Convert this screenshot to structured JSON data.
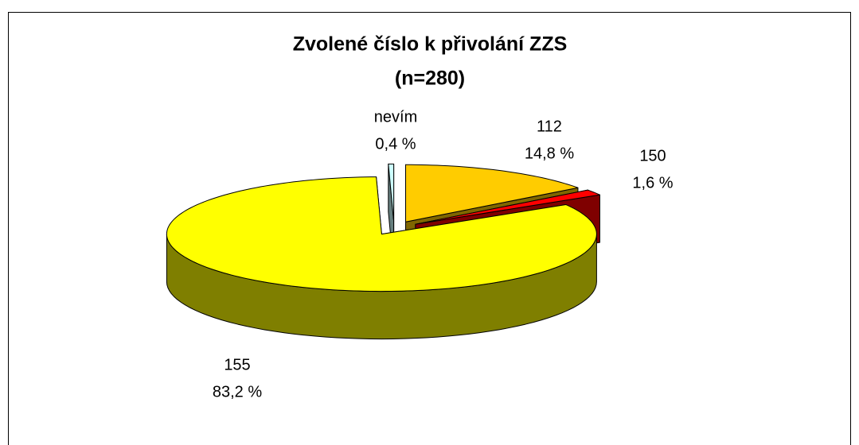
{
  "chart_data": {
    "type": "pie",
    "title": "Zvolené číslo k přivolání ZZS",
    "subtitle": "(n=280)",
    "categories": [
      "112",
      "150",
      "155",
      "nevím"
    ],
    "values": [
      14.8,
      1.6,
      83.2,
      0.4
    ],
    "value_labels": [
      "14,8 %",
      "1,6 %",
      "83,2 %",
      "0,4 %"
    ],
    "colors": [
      "#ffcc00",
      "#ff0000",
      "#ffff00",
      "#ccffff"
    ]
  }
}
